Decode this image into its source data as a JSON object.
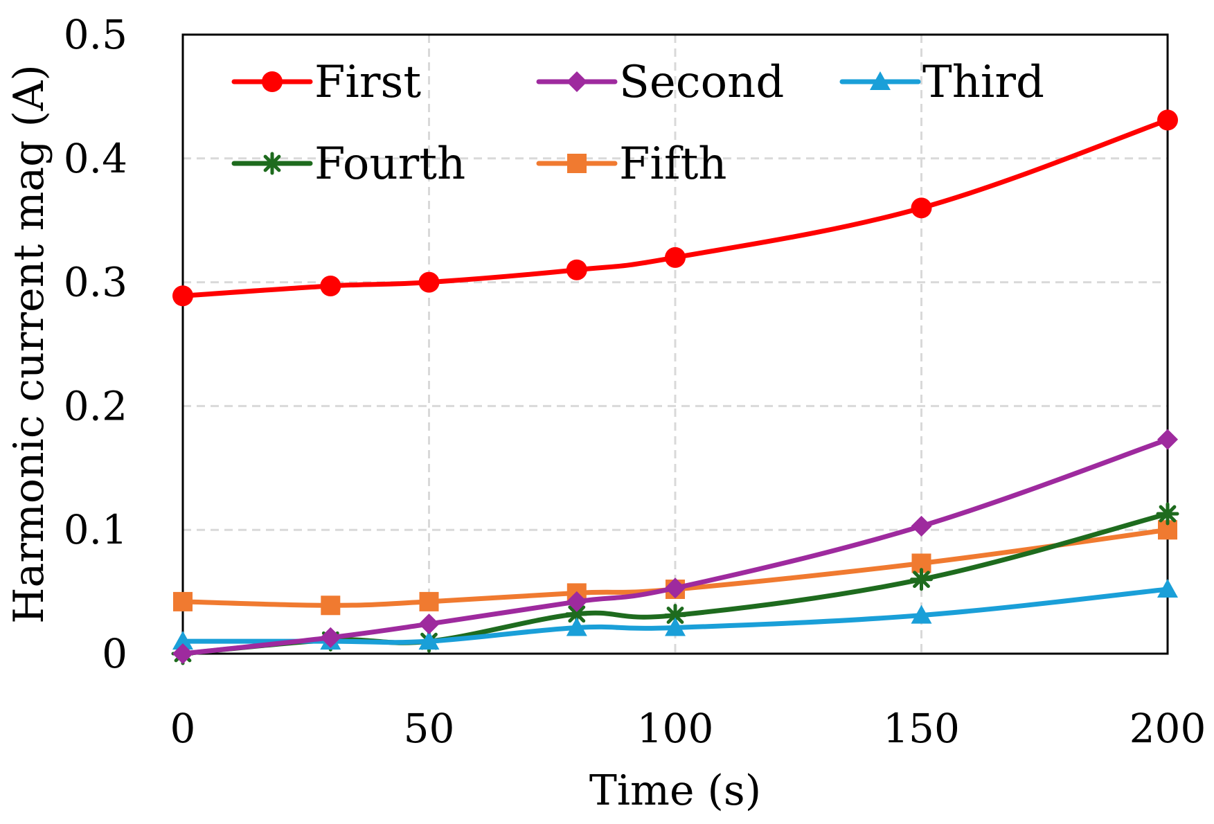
{
  "chart_data": {
    "type": "line",
    "title": "",
    "xlabel": "Time (s)",
    "ylabel": "Harmonic current mag (A)",
    "xlim": [
      0,
      200
    ],
    "ylim": [
      0,
      0.5
    ],
    "xticks": [
      "0",
      "50",
      "100",
      "150",
      "200"
    ],
    "yticks": [
      "0",
      "0.1",
      "0.2",
      "0.3",
      "0.4",
      "0.5"
    ],
    "grid": true,
    "legend_position": "top",
    "x": [
      0,
      30,
      50,
      80,
      100,
      150,
      200
    ],
    "series": [
      {
        "name": "First",
        "color": "#ff0000",
        "marker": "circle",
        "values": [
          0.289,
          0.297,
          0.3,
          0.31,
          0.32,
          0.36,
          0.431
        ]
      },
      {
        "name": "Second",
        "color": "#9e2a9e",
        "marker": "diamond",
        "values": [
          0.0,
          0.013,
          0.024,
          0.042,
          0.053,
          0.103,
          0.173
        ]
      },
      {
        "name": "Third",
        "color": "#1a9fd8",
        "marker": "triangle",
        "values": [
          0.01,
          0.01,
          0.01,
          0.021,
          0.021,
          0.031,
          0.052
        ]
      },
      {
        "name": "Fourth",
        "color": "#1e6b1e",
        "marker": "star",
        "values": [
          0.0,
          0.011,
          0.01,
          0.032,
          0.031,
          0.06,
          0.113
        ]
      },
      {
        "name": "Fifth",
        "color": "#f07a30",
        "marker": "square",
        "values": [
          0.042,
          0.039,
          0.042,
          0.049,
          0.052,
          0.073,
          0.1
        ]
      }
    ]
  }
}
